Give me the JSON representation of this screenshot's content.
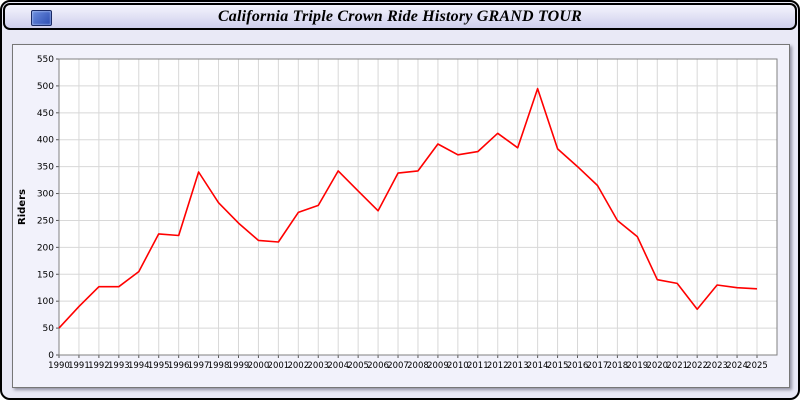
{
  "window": {
    "title": "California Triple Crown Ride History GRAND TOUR"
  },
  "chart_data": {
    "type": "line",
    "title": "California Triple Crown Ride History GRAND TOUR",
    "xlabel": "",
    "ylabel": "Riders",
    "ylim": [
      0,
      550
    ],
    "ytick_step": 50,
    "grid": true,
    "legend": "none",
    "line_color": "#ff0000",
    "plot_background": "#ffffff",
    "grid_color": "#d8d8d8",
    "categories": [
      1990,
      1991,
      1992,
      1993,
      1994,
      1995,
      1996,
      1997,
      1998,
      1999,
      2000,
      2001,
      2002,
      2003,
      2004,
      2005,
      2006,
      2007,
      2008,
      2009,
      2010,
      2011,
      2012,
      2013,
      2014,
      2015,
      2016,
      2017,
      2018,
      2019,
      2020,
      2021,
      2022,
      2023,
      2024,
      2025
    ],
    "values": [
      50,
      90,
      127,
      127,
      155,
      225,
      222,
      340,
      283,
      245,
      213,
      210,
      265,
      278,
      342,
      305,
      268,
      338,
      342,
      392,
      372,
      378,
      412,
      385,
      495,
      383,
      350,
      315,
      250,
      220,
      140,
      133,
      85,
      130,
      125,
      123
    ]
  }
}
